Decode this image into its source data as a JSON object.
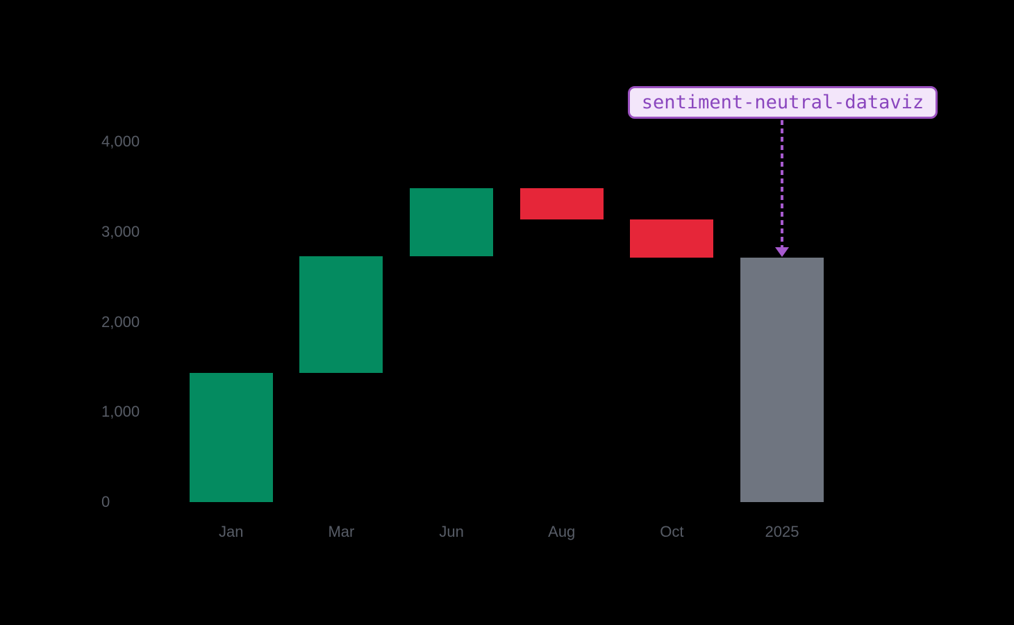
{
  "background": "#000000",
  "colors": {
    "increase": "#048B60",
    "decrease": "#E62639",
    "total": "#6F7580",
    "axis_label": "#575C66",
    "annotation_bg": "#F3E6FA",
    "annotation_border": "#9B51C0",
    "annotation_text": "#8A46BE",
    "arrow": "#A75ACF"
  },
  "annotation": {
    "label": "sentiment-neutral-dataviz",
    "target_category": "2025"
  },
  "chart_data": {
    "type": "bar",
    "subtype": "waterfall",
    "title": "",
    "xlabel": "",
    "ylabel": "",
    "grid": false,
    "legend": null,
    "ylim": [
      0,
      4000
    ],
    "y_ticks": [
      0,
      1000,
      2000,
      3000,
      4000
    ],
    "y_tick_labels": [
      "0",
      "1,000",
      "2,000",
      "3,000",
      "4,000"
    ],
    "categories": [
      "Jan",
      "Mar",
      "Jun",
      "Aug",
      "Oct",
      "2025"
    ],
    "steps": [
      {
        "label": "Jan",
        "value": 1435,
        "kind": "increase",
        "start": 0,
        "end": 1435
      },
      {
        "label": "Mar",
        "value": 1290,
        "kind": "increase",
        "start": 1435,
        "end": 2725
      },
      {
        "label": "Jun",
        "value": 760,
        "kind": "increase",
        "start": 2725,
        "end": 3485
      },
      {
        "label": "Aug",
        "value": -345,
        "kind": "decrease",
        "start": 3485,
        "end": 3140
      },
      {
        "label": "Oct",
        "value": -425,
        "kind": "decrease",
        "start": 3140,
        "end": 2715
      },
      {
        "label": "2025",
        "value": 2715,
        "kind": "total",
        "start": 0,
        "end": 2715
      }
    ]
  }
}
